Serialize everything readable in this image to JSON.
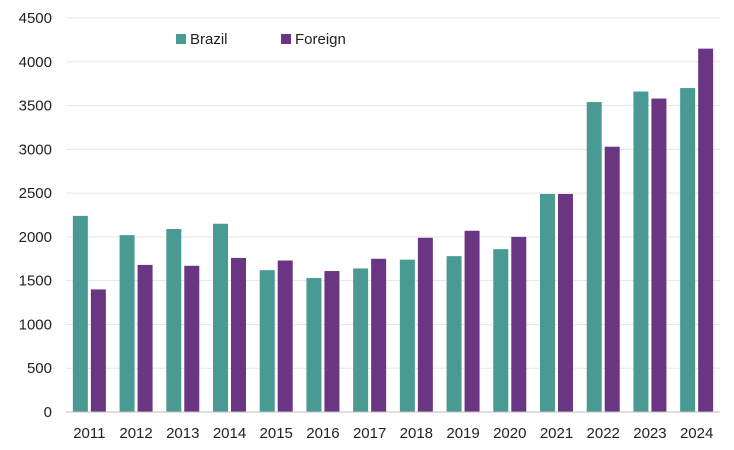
{
  "chart_data": {
    "type": "bar",
    "categories": [
      "2011",
      "2012",
      "2013",
      "2014",
      "2015",
      "2016",
      "2017",
      "2018",
      "2019",
      "2020",
      "2021",
      "2022",
      "2023",
      "2024"
    ],
    "series": [
      {
        "name": "Brazil",
        "color": "#4a9a94",
        "values": [
          2240,
          2020,
          2090,
          2150,
          1620,
          1530,
          1640,
          1740,
          1780,
          1860,
          2490,
          3540,
          3660,
          3700
        ]
      },
      {
        "name": "Foreign",
        "color": "#6a3582",
        "values": [
          1400,
          1680,
          1670,
          1760,
          1730,
          1610,
          1750,
          1990,
          2070,
          2000,
          2490,
          3030,
          3580,
          4150
        ]
      }
    ],
    "title": "",
    "xlabel": "",
    "ylabel": "",
    "ylim": [
      0,
      4500
    ],
    "yticks": [
      0,
      500,
      1000,
      1500,
      2000,
      2500,
      3000,
      3500,
      4000,
      4500
    ],
    "grid": true,
    "legend_position": "top-left"
  }
}
